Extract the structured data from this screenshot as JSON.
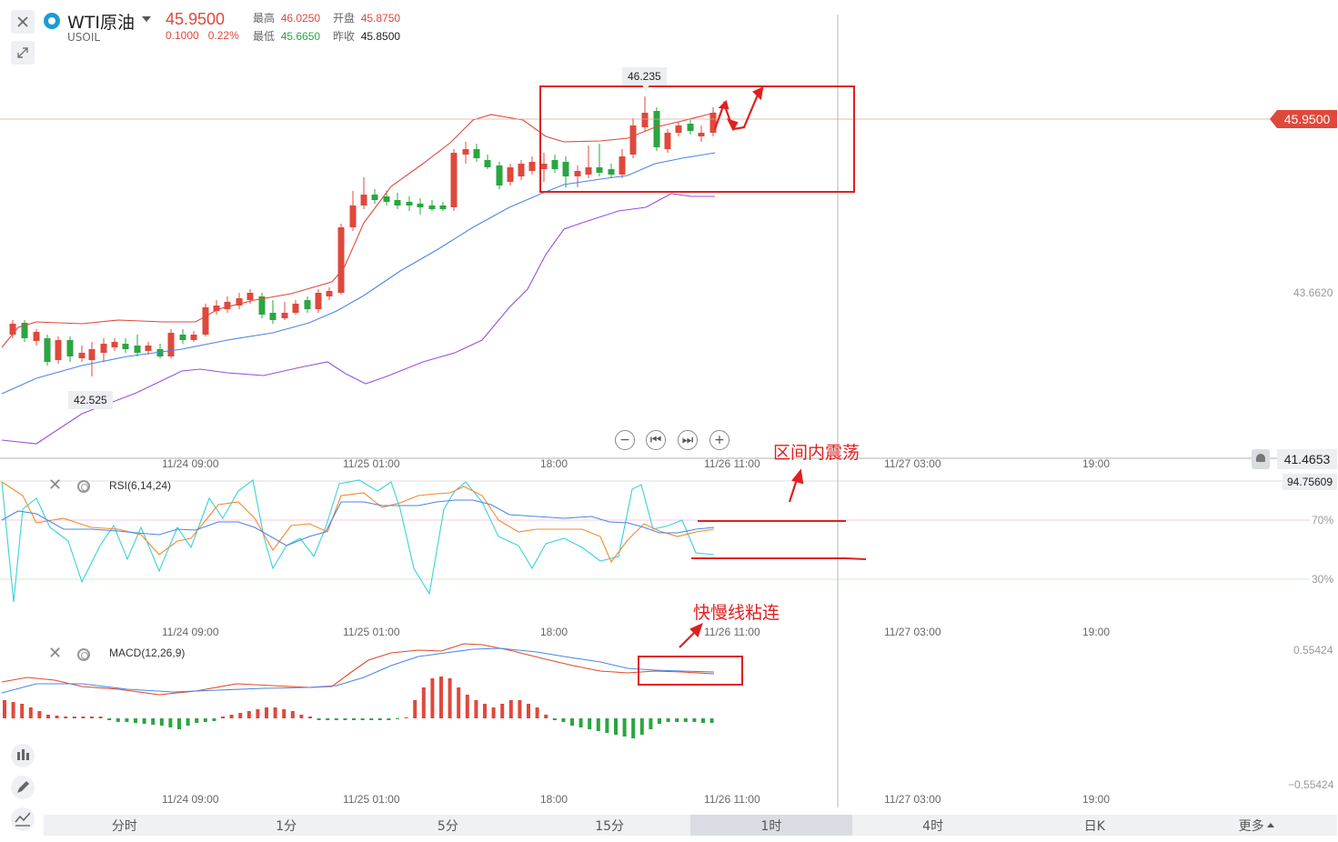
{
  "header": {
    "close_icon": "close-icon",
    "collapse_icon": "collapse-icon",
    "symbol_name": "WTI原油",
    "symbol_code": "USOIL",
    "price": "45.9500",
    "change": "0.1000",
    "change_pct": "0.22%",
    "stats": {
      "high_label": "最高",
      "high_value": "46.0250",
      "open_label": "开盘",
      "open_value": "45.8750",
      "low_label": "最低",
      "low_value": "45.6650",
      "prev_label": "昨收",
      "prev_value": "45.8500"
    }
  },
  "main_chart": {
    "current_price_tag": "45.9500",
    "y_labels": [
      "43.6620",
      "41.4653"
    ],
    "high_marker": "46.235",
    "low_marker": "42.525",
    "x_labels": [
      "11/24 09:00",
      "11/25 01:00",
      "18:00",
      "11/26 11:00",
      "11/27 03:00",
      "19:00"
    ],
    "controls": [
      "−",
      "⏮",
      "⏭",
      "+"
    ]
  },
  "rsi_panel": {
    "label": "RSI(6,14,24)",
    "top_value": "94.75609",
    "level_70": "70%",
    "level_30": "30%",
    "x_labels": [
      "11/24 09:00",
      "11/25 01:00",
      "18:00",
      "11/26 11:00",
      "11/27 03:00",
      "19:00"
    ]
  },
  "macd_panel": {
    "label": "MACD(12,26,9)",
    "top_value": "0.55424",
    "bottom_value": "−0.55424",
    "x_labels": [
      "11/24 09:00",
      "11/25 01:00",
      "18:00",
      "11/26 11:00",
      "11/27 03:00",
      "19:00"
    ]
  },
  "annotations": {
    "range_text": "区间内震荡",
    "macd_text": "快慢线粘连"
  },
  "periods": [
    {
      "label": "分时",
      "active": false
    },
    {
      "label": "1分",
      "active": false
    },
    {
      "label": "5分",
      "active": false
    },
    {
      "label": "15分",
      "active": false
    },
    {
      "label": "1时",
      "active": true
    },
    {
      "label": "4时",
      "active": false
    },
    {
      "label": "日K",
      "active": false
    },
    {
      "label": "更多",
      "active": false
    }
  ],
  "colors": {
    "up": "#e0483c",
    "down": "#2aa640",
    "ma_mid": "#4a86e8",
    "ma_lower": "#9a4fe0",
    "annotation": "#e02020"
  }
}
